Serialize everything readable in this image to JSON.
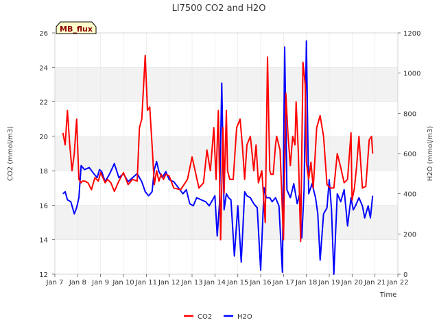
{
  "chart_data": {
    "type": "line",
    "title": "LI7500 CO2 and H2O",
    "xlabel": "Time",
    "ylabel_left": "CO2 (mmol/m3)",
    "ylabel_right": "H2O (mmol/m3)",
    "badge": "MB_flux",
    "x_ticks": [
      "Jan 7",
      "Jan 8",
      "Jan 9",
      "Jan 10",
      "Jan 11",
      "Jan 12",
      "Jan 13",
      "Jan 14",
      "Jan 15",
      "Jan 16",
      "Jan 17",
      "Jan 18",
      "Jan 19",
      "Jan 20",
      "Jan 21",
      "Jan 22"
    ],
    "xlim": [
      7,
      22
    ],
    "ylim_left": [
      12,
      26
    ],
    "yticks_left": [
      12,
      14,
      16,
      18,
      20,
      22,
      24,
      26
    ],
    "ylim_right": [
      0,
      1200
    ],
    "yticks_right": [
      0,
      200,
      400,
      600,
      800,
      1000,
      1200
    ],
    "legend": [
      "CO2",
      "H2O"
    ],
    "colors": {
      "CO2": "#ff0000",
      "H2O": "#0000ff",
      "band": "#f2f2f2",
      "grid": "#e5e5e5"
    },
    "series": [
      {
        "name": "CO2",
        "axis": "left",
        "x": [
          7.35,
          7.45,
          7.55,
          7.65,
          7.75,
          7.85,
          7.95,
          8.05,
          8.15,
          8.2,
          8.3,
          8.45,
          8.6,
          8.75,
          8.9,
          9.0,
          9.2,
          9.3,
          9.45,
          9.6,
          9.8,
          10.0,
          10.2,
          10.4,
          10.6,
          10.7,
          10.8,
          10.95,
          11.05,
          11.15,
          11.25,
          11.35,
          11.45,
          11.55,
          11.65,
          11.75,
          11.85,
          12.0,
          12.2,
          12.5,
          12.8,
          13.0,
          13.3,
          13.5,
          13.65,
          13.8,
          13.95,
          14.05,
          14.15,
          14.25,
          14.35,
          14.4,
          14.45,
          14.5,
          14.55,
          14.65,
          14.8,
          14.95,
          15.1,
          15.2,
          15.3,
          15.4,
          15.55,
          15.7,
          15.8,
          15.9,
          16.05,
          16.2,
          16.3,
          16.4,
          16.45,
          16.55,
          16.65,
          16.7,
          16.85,
          17.0,
          17.1,
          17.2,
          17.3,
          17.4,
          17.5,
          17.55,
          17.65,
          17.75,
          17.85,
          17.95,
          18.0,
          18.1,
          18.2,
          18.3,
          18.45,
          18.6,
          18.75,
          18.9,
          19.05,
          19.2,
          19.35,
          19.5,
          19.65,
          19.8,
          19.95,
          20.0,
          20.1,
          20.2,
          20.3,
          20.45,
          20.6,
          20.75,
          20.85,
          20.9
        ],
        "values": [
          20.2,
          19.5,
          21.5,
          19.5,
          18.0,
          19.0,
          21.0,
          17.5,
          17.3,
          17.4,
          17.4,
          17.3,
          16.9,
          17.6,
          17.4,
          17.9,
          17.3,
          17.5,
          17.3,
          16.8,
          17.4,
          17.9,
          17.2,
          17.5,
          17.4,
          20.5,
          21.0,
          24.7,
          21.5,
          21.7,
          19.5,
          17.2,
          18.0,
          17.4,
          17.8,
          17.5,
          17.8,
          17.7,
          17.0,
          16.9,
          17.5,
          18.8,
          17.0,
          17.3,
          19.2,
          18.0,
          20.5,
          17.5,
          21.5,
          14.0,
          20.5,
          16.7,
          19.0,
          21.5,
          18.0,
          17.5,
          17.5,
          20.5,
          21.0,
          19.5,
          17.5,
          19.5,
          20.0,
          18.0,
          19.5,
          17.3,
          18.0,
          15.0,
          24.6,
          18.0,
          17.8,
          17.8,
          19.5,
          20.0,
          19.2,
          14.0,
          22.5,
          20.0,
          18.3,
          20.0,
          19.5,
          22.0,
          19.0,
          13.9,
          24.3,
          23.0,
          18.5,
          17.5,
          18.5,
          17.0,
          20.5,
          21.2,
          20.0,
          17.2,
          17.0,
          17.0,
          19.0,
          18.2,
          17.3,
          17.5,
          20.2,
          16.3,
          17.0,
          18.3,
          20.0,
          17.0,
          17.1,
          19.8,
          20.0,
          19.0
        ]
      },
      {
        "name": "H2O",
        "axis": "right",
        "x": [
          7.35,
          7.45,
          7.55,
          7.7,
          7.85,
          7.95,
          8.05,
          8.15,
          8.3,
          8.5,
          8.7,
          8.85,
          8.95,
          9.05,
          9.2,
          9.4,
          9.6,
          9.8,
          10.0,
          10.2,
          10.4,
          10.6,
          10.8,
          10.95,
          11.1,
          11.25,
          11.35,
          11.45,
          11.55,
          11.7,
          11.85,
          12.0,
          12.2,
          12.4,
          12.6,
          12.75,
          12.9,
          13.05,
          13.2,
          13.4,
          13.6,
          13.75,
          13.9,
          14.0,
          14.1,
          14.2,
          14.3,
          14.4,
          14.5,
          14.6,
          14.7,
          14.85,
          15.0,
          15.15,
          15.3,
          15.4,
          15.55,
          15.7,
          15.85,
          16.0,
          16.15,
          16.25,
          16.4,
          16.5,
          16.65,
          16.8,
          16.95,
          17.05,
          17.15,
          17.3,
          17.45,
          17.6,
          17.7,
          17.8,
          17.9,
          18.0,
          18.1,
          18.25,
          18.4,
          18.5,
          18.6,
          18.75,
          18.9,
          19.0,
          19.1,
          19.2,
          19.35,
          19.5,
          19.65,
          19.8,
          19.95,
          20.05,
          20.15,
          20.3,
          20.45,
          20.55,
          20.7,
          20.8,
          20.9
        ],
        "values": [
          400,
          410,
          370,
          360,
          300,
          330,
          380,
          540,
          520,
          530,
          500,
          480,
          520,
          510,
          460,
          500,
          550,
          480,
          500,
          460,
          480,
          500,
          460,
          410,
          390,
          410,
          520,
          560,
          510,
          480,
          510,
          470,
          460,
          430,
          400,
          420,
          350,
          340,
          380,
          370,
          360,
          340,
          370,
          390,
          190,
          350,
          950,
          320,
          400,
          380,
          370,
          90,
          340,
          60,
          410,
          390,
          380,
          350,
          330,
          20,
          430,
          380,
          380,
          360,
          380,
          340,
          10,
          1130,
          420,
          380,
          450,
          350,
          400,
          180,
          420,
          1160,
          400,
          450,
          380,
          300,
          70,
          300,
          330,
          470,
          320,
          0,
          400,
          360,
          420,
          240,
          380,
          320,
          340,
          380,
          340,
          280,
          340,
          280,
          390
        ]
      }
    ]
  }
}
